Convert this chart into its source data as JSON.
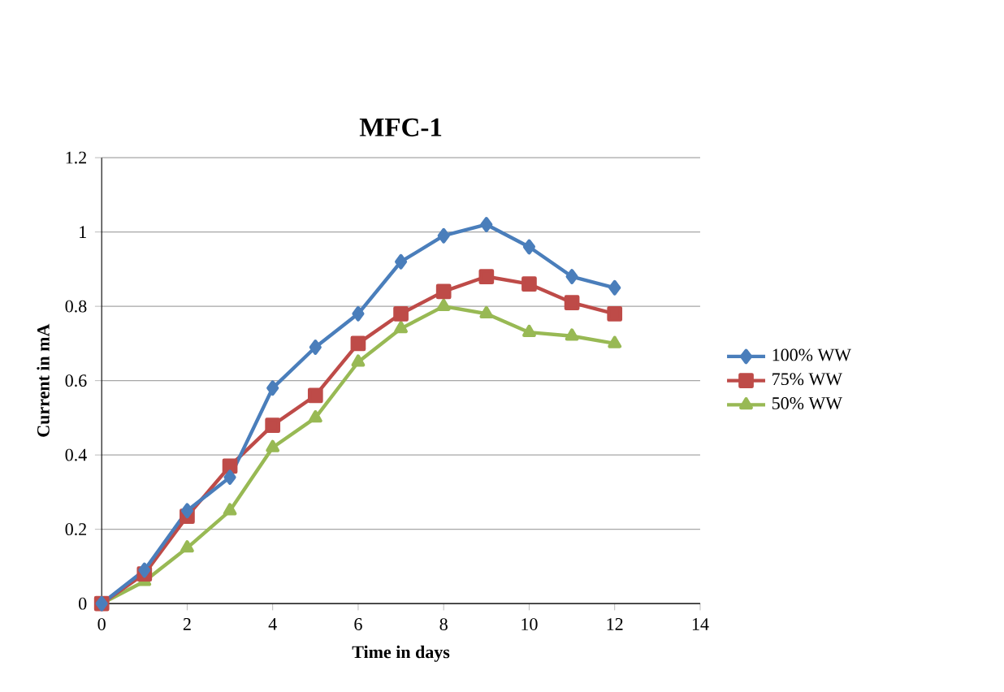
{
  "chart_data": {
    "type": "line",
    "title": "MFC-1",
    "xlabel": "Time in days",
    "ylabel": "Current in mA",
    "x": [
      0,
      1,
      2,
      3,
      4,
      5,
      6,
      7,
      8,
      9,
      10,
      11,
      12
    ],
    "series": [
      {
        "name": "100% WW",
        "color": "#4a7ebb",
        "marker": "diamond",
        "values": [
          0,
          0.09,
          0.25,
          0.34,
          0.58,
          0.69,
          0.78,
          0.92,
          0.99,
          1.02,
          0.96,
          0.88,
          0.85
        ]
      },
      {
        "name": "75% WW",
        "color": "#be4b48",
        "marker": "square",
        "values": [
          0,
          0.08,
          0.235,
          0.37,
          0.48,
          0.56,
          0.7,
          0.78,
          0.84,
          0.88,
          0.86,
          0.81,
          0.78
        ]
      },
      {
        "name": "50% WW",
        "color": "#98b954",
        "marker": "triangle",
        "values": [
          0,
          0.06,
          0.15,
          0.25,
          0.42,
          0.5,
          0.65,
          0.74,
          0.8,
          0.78,
          0.73,
          0.72,
          0.7
        ]
      }
    ],
    "xlim": [
      0,
      14
    ],
    "xticks": [
      0,
      2,
      4,
      6,
      8,
      10,
      12,
      14
    ],
    "ylim": [
      0,
      1.2
    ],
    "yticks": [
      0,
      0.2,
      0.4,
      0.6,
      0.8,
      1,
      1.2
    ],
    "grid": "y",
    "legend": "right"
  }
}
